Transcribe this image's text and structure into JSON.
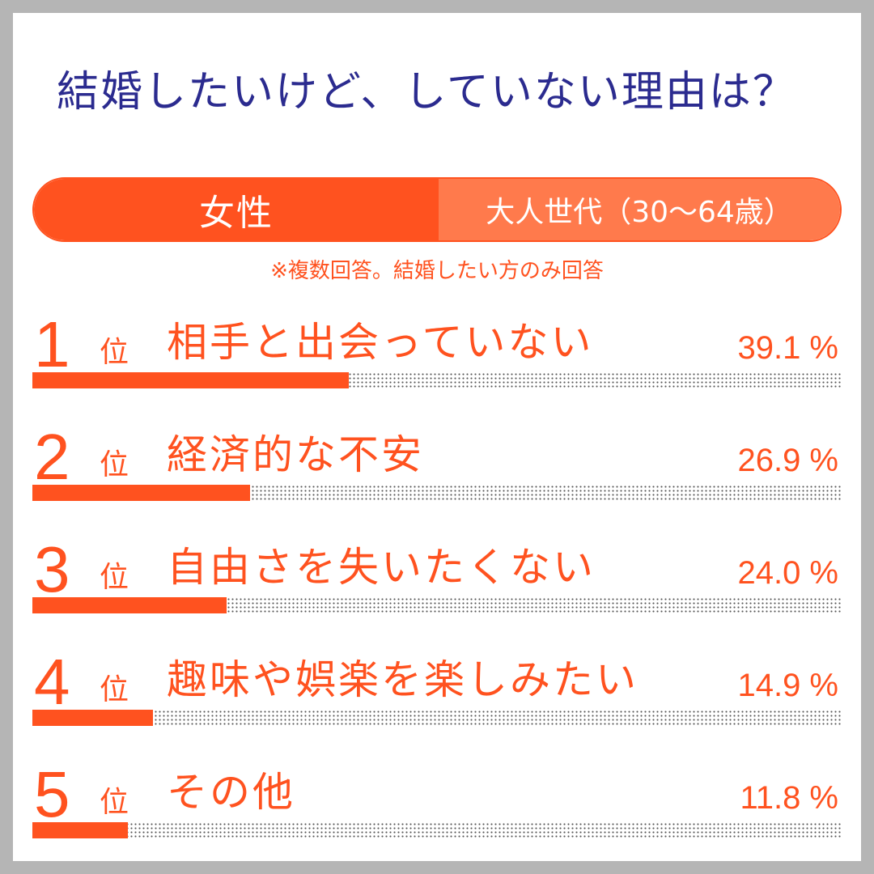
{
  "title": "結婚したいけど、していない理由は？",
  "header_pill": {
    "left_label": "女性",
    "right_label": "大人世代（30〜64歳）"
  },
  "note": "※複数回答。結婚したい方のみ回答",
  "colors": {
    "accent": "#ff521f",
    "accent_light": "#ff7a4c",
    "title": "#2b2b8f"
  },
  "rank_suffix": "位",
  "chart_data": {
    "type": "bar",
    "orientation": "horizontal",
    "categories": [
      "相手と出会っていない",
      "経済的な不安",
      "自由さを失いたくない",
      "趣味や娯楽を楽しみたい",
      "その他"
    ],
    "values": [
      39.1,
      26.9,
      24.0,
      14.9,
      11.8
    ],
    "value_labels": [
      "39.1 %",
      "26.9 %",
      "24.0 %",
      "14.9 %",
      "11.8 %"
    ],
    "ranks": [
      "1",
      "2",
      "3",
      "4",
      "5"
    ],
    "xlim": [
      0,
      100
    ],
    "unit": "%"
  }
}
